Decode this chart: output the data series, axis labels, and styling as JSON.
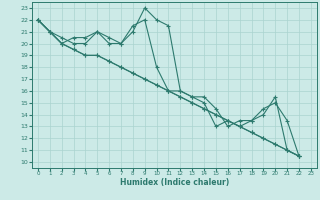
{
  "xlabel": "Humidex (Indice chaleur)",
  "bg_color": "#cceae7",
  "grid_color": "#aad4d0",
  "line_color": "#2d7a6e",
  "spine_color": "#2d7a6e",
  "xlim": [
    -0.5,
    23.5
  ],
  "ylim": [
    9.5,
    23.5
  ],
  "xticks": [
    0,
    1,
    2,
    3,
    4,
    5,
    6,
    7,
    8,
    9,
    10,
    11,
    12,
    13,
    14,
    15,
    16,
    17,
    18,
    19,
    20,
    21,
    22,
    23
  ],
  "yticks": [
    10,
    11,
    12,
    13,
    14,
    15,
    16,
    17,
    18,
    19,
    20,
    21,
    22,
    23
  ],
  "series": [
    [
      22,
      21,
      20,
      20.5,
      20.5,
      21,
      20,
      20,
      21,
      23,
      22,
      21.5,
      16,
      15.5,
      15.5,
      14.5,
      13,
      13.5,
      13.5,
      14,
      15.5,
      11,
      10.5
    ],
    [
      22,
      21,
      20,
      19.5,
      19,
      19,
      18.5,
      18,
      17.5,
      17,
      16.5,
      16,
      15.5,
      15,
      14.5,
      14,
      13.5,
      13,
      12.5,
      12,
      11.5,
      11,
      10.5
    ],
    [
      22,
      21,
      20,
      19.5,
      19,
      19,
      18.5,
      18,
      17.5,
      17,
      16.5,
      16,
      15.5,
      15,
      14.5,
      14,
      13.5,
      13,
      12.5,
      12,
      11.5,
      11,
      10.5
    ],
    [
      22,
      21,
      20.5,
      20,
      20,
      21,
      20.5,
      20,
      21.5,
      22,
      18,
      16,
      16,
      15.5,
      15,
      13,
      13.5,
      13,
      13.5,
      14.5,
      15,
      13.5,
      10.5
    ]
  ]
}
